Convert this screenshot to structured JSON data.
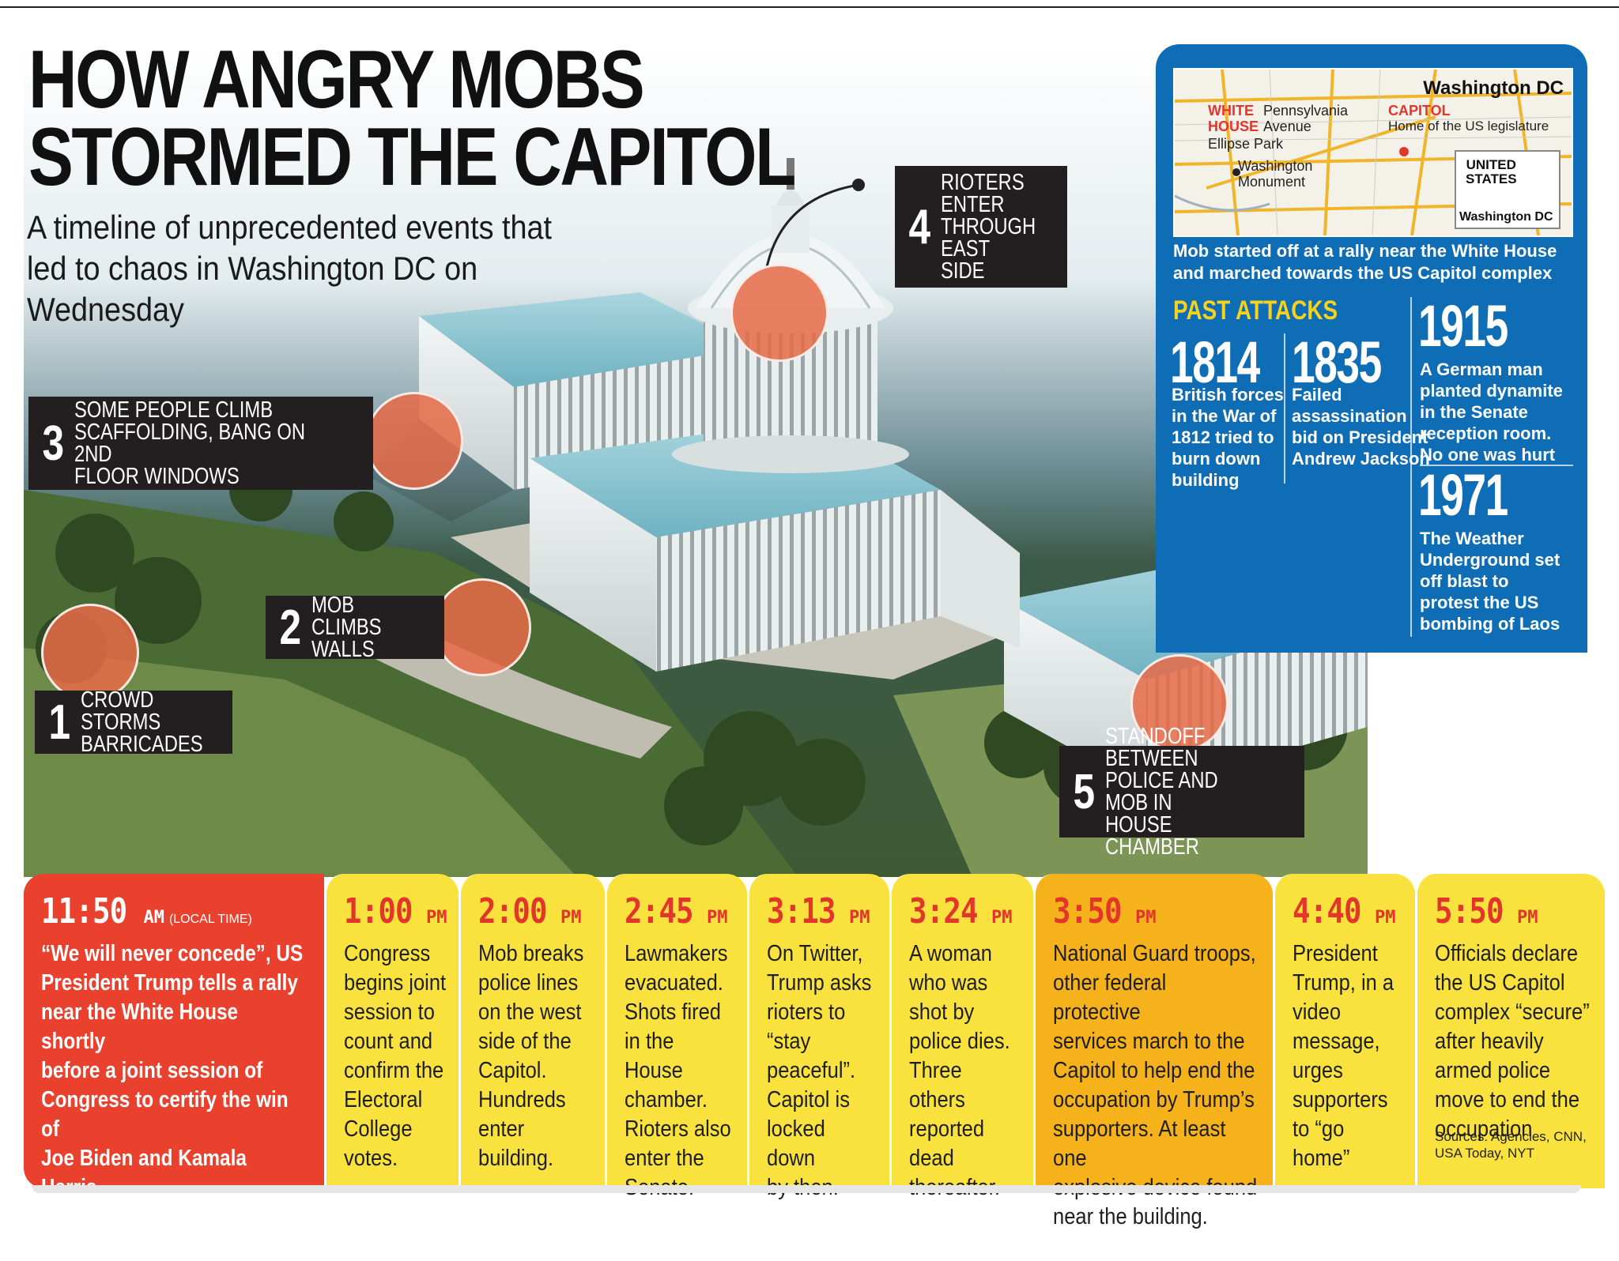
{
  "headline": {
    "title": "HOW ANGRY MOBS\nSTORMED THE CAPITOL",
    "subtitle": "A timeline of unprecedented events that led to chaos in Washington DC on Wednesday"
  },
  "events": [
    {
      "num": "1",
      "text": "CROWD STORMS\nBARRICADES"
    },
    {
      "num": "2",
      "text": "MOB CLIMBS\nWALLS"
    },
    {
      "num": "3",
      "text": "SOME PEOPLE CLIMB\nSCAFFOLDING, BANG ON 2ND\nFLOOR WINDOWS"
    },
    {
      "num": "4",
      "text": "RIOTERS\nENTER\nTHROUGH\nEAST SIDE"
    },
    {
      "num": "5",
      "text": "STANDOFF BETWEEN\nPOLICE AND MOB IN\nHOUSE CHAMBER"
    }
  ],
  "map": {
    "title": "Washington DC",
    "white_house": "WHITE\nHOUSE",
    "pennsylvania": "Pennsylvania\nAvenue",
    "ellipse": "Ellipse Park",
    "capitol": "CAPITOL",
    "capitol_desc": "Home of the US legislature",
    "monument": "Washington\nMonument",
    "inset_country": "UNITED\nSTATES",
    "inset_city": "Washington DC",
    "caption": "Mob started off at a rally near the White House\nand marched towards the US Capitol complex"
  },
  "past_attacks": {
    "heading": "PAST ATTACKS",
    "items": [
      {
        "year": "1814",
        "text": "British forces\nin the War of\n1812 tried to\nburn down\nbuilding"
      },
      {
        "year": "1835",
        "text": "Failed\nassassination\nbid on President\nAndrew Jackson"
      },
      {
        "year": "1915",
        "text": "A German man\nplanted  dynamite\nin the Senate\nreception room.\nNo one was hurt"
      },
      {
        "year": "1971",
        "text": "The Weather\nUnderground set\noff blast to\nprotest the US\nbombing of Laos"
      }
    ]
  },
  "timeline": [
    {
      "time": "11:50",
      "ampm": "AM",
      "local": "(LOCAL TIME)",
      "text": "“We will never concede”, US\nPresident Trump tells a rally\nnear the White House shortly\nbefore a joint session of\nCongress to certify the win of\nJoe Biden and Kamala Harris.\nA crowd begins marching\ntowards the Capitol."
    },
    {
      "time": "1:00",
      "ampm": "PM",
      "text": "Congress\nbegins joint\nsession to\ncount and\nconfirm the\nElectoral\nCollege\nvotes."
    },
    {
      "time": "2:00",
      "ampm": "PM",
      "text": "Mob breaks\npolice lines\non the west\nside of the\nCapitol.\nHundreds\nenter\nbuilding."
    },
    {
      "time": "2:45",
      "ampm": "PM",
      "text": "Lawmakers\nevacuated.\nShots fired\nin the House\nchamber.\nRioters  also\nenter the\nSenate."
    },
    {
      "time": "3:13",
      "ampm": "PM",
      "text": "On Twitter,\nTrump asks\nrioters to\n“stay\npeaceful”.\nCapitol is\nlocked down\nby then."
    },
    {
      "time": "3:24",
      "ampm": "PM",
      "text": "A woman\nwho was\nshot by\npolice dies.\nThree others\nreported\ndead\nthereafter."
    },
    {
      "time": "3:50",
      "ampm": "PM",
      "text": "National Guard troops,\nother federal protective\nservices march to the\nCapitol to help end the\noccupation by Trump’s\nsupporters. At least one\nexplosive device found\nnear the building."
    },
    {
      "time": "4:40",
      "ampm": "PM",
      "text": "President\nTrump, in a\nvideo\nmessage,\nurges\nsupporters\nto “go\nhome”"
    },
    {
      "time": "5:50",
      "ampm": "PM",
      "text": "Officials declare\nthe US Capitol\ncomplex “secure”\nafter heavily\narmed police\nmove to end the\noccupation"
    }
  ],
  "sources": "Sources: Agencies, CNN,\nUSA Today, NYT",
  "colors": {
    "panel_blue": "#0f6db5",
    "timeline_red": "#e9412d",
    "timeline_yellow": "#f9e23d",
    "timeline_amber": "#f5b21a",
    "marker": "#e76a46",
    "label_bg": "#231f20"
  }
}
